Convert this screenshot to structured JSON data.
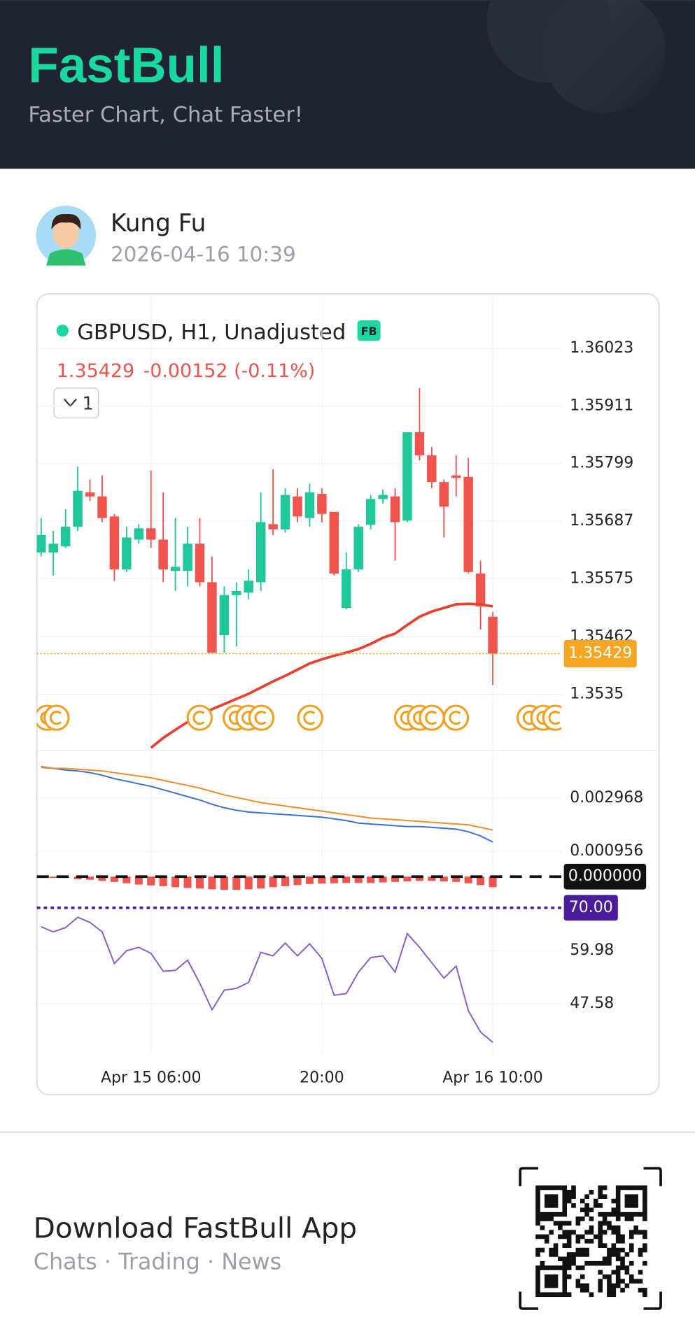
{
  "header": {
    "brand": "FastBull",
    "tagline": "Faster Chart, Chat Faster!"
  },
  "post": {
    "author": "Kung Fu",
    "time": "2026-04-16 10:39"
  },
  "chart_data": [
    {
      "type": "candlestick",
      "title": "GBPUSD, H1, Unadjusted",
      "badge": "FB",
      "price_label": "1.35429",
      "change_label": "-0.00152 (-0.11%)",
      "interval_button": "1",
      "categories": [
        null,
        null,
        null,
        null,
        null,
        null,
        null,
        null,
        null,
        "Apr 15 06:00",
        null,
        null,
        null,
        null,
        null,
        null,
        null,
        null,
        null,
        null,
        null,
        null,
        null,
        "20:00",
        null,
        null,
        null,
        null,
        null,
        null,
        null,
        null,
        null,
        null,
        null,
        null,
        null,
        "Apr 16 10:00"
      ],
      "open": [
        1.35626,
        1.35626,
        1.35638,
        1.35676,
        1.35743,
        1.35735,
        1.35696,
        1.35593,
        1.35651,
        1.35673,
        1.35651,
        1.3559,
        1.3559,
        1.35643,
        1.35568,
        1.35465,
        1.35543,
        1.35548,
        1.35568,
        1.35681,
        1.35671,
        1.35735,
        1.35693,
        1.3574,
        1.35705,
        1.35518,
        1.35593,
        1.3568,
        1.3573,
        1.35735,
        1.35688,
        1.3586,
        1.35815,
        1.35763,
        1.35776,
        1.35773,
        1.35585,
        1.35501
      ],
      "high": [
        1.35693,
        1.35668,
        1.3571,
        1.35793,
        1.35768,
        1.35776,
        1.35701,
        1.35676,
        1.35681,
        1.35785,
        1.35743,
        1.35693,
        1.35676,
        1.35693,
        1.35618,
        1.3556,
        1.35568,
        1.35593,
        1.35743,
        1.35788,
        1.35751,
        1.35751,
        1.3576,
        1.35751,
        1.35705,
        1.35626,
        1.35681,
        1.35738,
        1.35748,
        1.35751,
        1.3586,
        1.35946,
        1.35831,
        1.35768,
        1.35815,
        1.3581,
        1.3561,
        1.3551
      ],
      "low": [
        1.35618,
        1.35581,
        1.35635,
        1.35668,
        1.35726,
        1.35685,
        1.35571,
        1.35588,
        1.35643,
        1.35635,
        1.35568,
        1.35551,
        1.3556,
        1.3556,
        1.35431,
        1.35431,
        1.35443,
        1.35535,
        1.35551,
        1.3566,
        1.35665,
        1.35685,
        1.35676,
        1.35685,
        1.35581,
        1.35515,
        1.35588,
        1.35671,
        1.35721,
        1.3561,
        1.35685,
        1.35805,
        1.35751,
        1.35655,
        1.35735,
        1.35585,
        1.35476,
        1.35368
      ],
      "close": [
        1.3566,
        1.35643,
        1.35676,
        1.35746,
        1.35735,
        1.35693,
        1.35593,
        1.35655,
        1.35673,
        1.35651,
        1.35593,
        1.35598,
        1.35643,
        1.35568,
        1.35431,
        1.35543,
        1.35551,
        1.35571,
        1.35685,
        1.35671,
        1.35738,
        1.35696,
        1.35743,
        1.35701,
        1.35585,
        1.35593,
        1.35676,
        1.3573,
        1.35738,
        1.35685,
        1.3586,
        1.35815,
        1.35763,
        1.35715,
        1.35771,
        1.35588,
        1.35521,
        1.35429
      ],
      "overlay": {
        "color": "#e8402f",
        "values": [
          null,
          null,
          null,
          null,
          null,
          null,
          null,
          null,
          null,
          1.35246,
          1.35265,
          1.35281,
          1.35296,
          1.3531,
          1.35321,
          1.35331,
          1.35341,
          1.35351,
          1.35363,
          1.35375,
          1.35386,
          1.35398,
          1.3541,
          1.35418,
          1.35425,
          1.35431,
          1.35438,
          1.35448,
          1.3546,
          1.35468,
          1.35485,
          1.35501,
          1.35511,
          1.35518,
          1.35525,
          1.35526,
          1.35525,
          1.35521
        ]
      },
      "up_color": "#1fc79a",
      "down_color": "#f0544f",
      "price_color": "#f5a623",
      "ylim": [
        1.35241,
        1.36126
      ],
      "yticks": [
        1.36023,
        1.35911,
        1.35799,
        1.35687,
        1.35575,
        1.35462,
        1.3535
      ],
      "grid": true
    },
    {
      "type": "macd",
      "series": [
        {
          "color": "#3b6fd6",
          "values": [
            0.004163,
            0.004099,
            0.004034,
            0.004001,
            0.003937,
            0.003839,
            0.00371,
            0.003613,
            0.003515,
            0.003418,
            0.003289,
            0.003159,
            0.003029,
            0.0029,
            0.002738,
            0.002608,
            0.002511,
            0.002446,
            0.002414,
            0.002381,
            0.002349,
            0.002317,
            0.002284,
            0.002252,
            0.002187,
            0.002122,
            0.002025,
            0.001993,
            0.00196,
            0.001928,
            0.001895,
            0.001895,
            0.001863,
            0.001831,
            0.001798,
            0.001701,
            0.001539,
            0.001312
          ]
        },
        {
          "color": "#f08a24",
          "values": [
            0.004131,
            0.004099,
            0.004099,
            0.004066,
            0.004034,
            0.004001,
            0.003937,
            0.003872,
            0.003807,
            0.003742,
            0.003645,
            0.003548,
            0.003451,
            0.003353,
            0.003224,
            0.003094,
            0.002997,
            0.0029,
            0.002803,
            0.002738,
            0.002673,
            0.002608,
            0.002543,
            0.002479,
            0.002414,
            0.002349,
            0.002284,
            0.002219,
            0.002187,
            0.002155,
            0.002122,
            0.00209,
            0.002057,
            0.002025,
            0.001993,
            0.00196,
            0.001863,
            0.001766
          ]
        }
      ],
      "histogram": {
        "color": "#f0544f",
        "values": [
          -5e-05,
          -5e-05,
          -5e-05,
          -0.0001,
          -0.00012,
          -0.00016,
          -0.0002,
          -0.00025,
          -0.0003,
          -0.00033,
          -0.00036,
          -0.0004,
          -0.00043,
          -0.00045,
          -0.00048,
          -0.0005,
          -0.0005,
          -0.00048,
          -0.00045,
          -0.0004,
          -0.00036,
          -0.00032,
          -0.00028,
          -0.00026,
          -0.00025,
          -0.00024,
          -0.00024,
          -0.00024,
          -0.00022,
          -0.0002,
          -0.00018,
          -0.00016,
          -0.00016,
          -0.00018,
          -0.0002,
          -0.00025,
          -0.00032,
          -0.0004
        ]
      },
      "highlight_color": "#111111",
      "ylim": [
        -0.000535,
        0.004783
      ],
      "yticks": [
        0.002968,
        0.000956,
        {
          "value": 0,
          "label": "0.000000"
        }
      ],
      "grid": true
    },
    {
      "type": "rsi",
      "series": [
        {
          "color": "#8a5cc8",
          "values": [
            65.58,
            64.38,
            65.38,
            67.78,
            66.58,
            64.38,
            56.98,
            59.98,
            60.78,
            59.38,
            55.18,
            55.38,
            57.78,
            52.38,
            46.18,
            50.78,
            51.18,
            52.58,
            59.58,
            58.78,
            61.78,
            58.78,
            61.58,
            58.18,
            49.58,
            49.98,
            54.98,
            58.38,
            58.78,
            54.98,
            63.98,
            60.78,
            57.18,
            53.58,
            56.38,
            45.98,
            40.98,
            38.58
          ]
        }
      ],
      "highlight_color": "#4a1c9a",
      "ylim": [
        35.58,
        73.98
      ],
      "yticks": [
        {
          "value": 70,
          "label": "70.00"
        },
        59.98,
        47.58
      ],
      "grid": true
    }
  ],
  "footer": {
    "title": "Download FastBull App",
    "subtitle": "Chats · Trading · News"
  }
}
